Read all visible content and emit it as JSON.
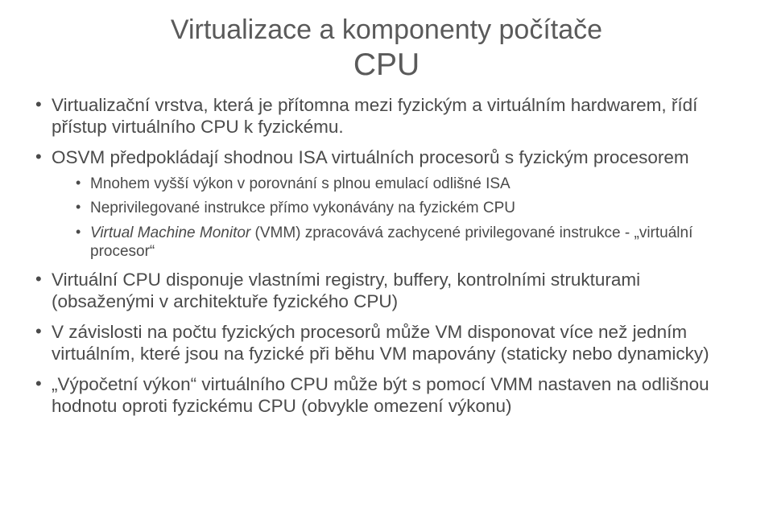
{
  "title": {
    "line1": "Virtualizace a komponenty počítače",
    "line2": "CPU"
  },
  "bullets": [
    {
      "text": "Virtualizační vrstva, která je přítomna mezi fyzickým a virtuálním hardwarem, řídí přístup virtuálního CPU k fyzickému."
    },
    {
      "text": "OSVM předpokládají shodnou ISA virtuálních procesorů s fyzickým procesorem",
      "children": [
        {
          "text": "Mnohem vyšší výkon v porovnání s plnou emulací odlišné ISA"
        },
        {
          "text": "Neprivilegované instrukce přímo vykonávány na fyzickém CPU"
        },
        {
          "text_html": "<em class=\"vm\">Virtual Machine Monitor</em> (VMM) zpracovává zachycené privilegované instrukce - „virtuální procesor“"
        }
      ]
    },
    {
      "text": "Virtuální CPU disponuje vlastními registry, buffery, kontrolními strukturami (obsaženými v architektuře fyzického CPU)"
    },
    {
      "text": "V závislosti na počtu fyzických procesorů může VM disponovat více než jedním virtuálním, které jsou na fyzické při běhu VM mapovány (staticky nebo dynamicky)"
    },
    {
      "text": "„Výpočetní výkon“ virtuálního CPU může být s pomocí VMM nastaven na odlišnou hodnotu oproti fyzickému CPU (obvykle omezení výkonu)"
    }
  ]
}
